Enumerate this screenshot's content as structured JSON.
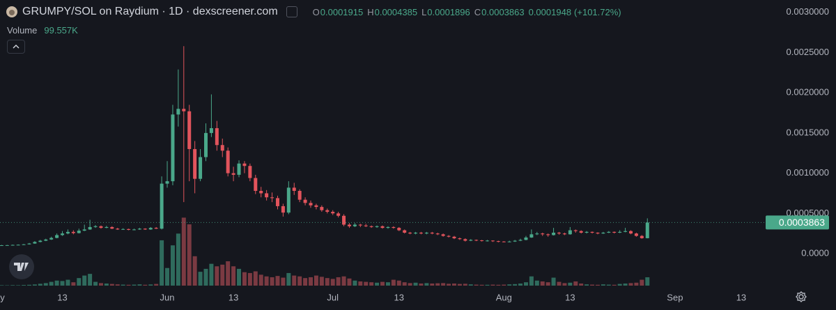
{
  "chart_data": {
    "type": "candlestick",
    "title": "GRUMPY/SOL on Raydium · 1D · dexscreener.com",
    "x": [
      2,
      3,
      4,
      5,
      6,
      7,
      8,
      9,
      10,
      11,
      12,
      13,
      14,
      15,
      16,
      17,
      18,
      19,
      20,
      21,
      22,
      23,
      24,
      25,
      26,
      27,
      28,
      29,
      30,
      31,
      32,
      33,
      34,
      35,
      36,
      37,
      38,
      39,
      40,
      41,
      42,
      43,
      44,
      45,
      46,
      47,
      48,
      49,
      50,
      51,
      52,
      53,
      54,
      55,
      56,
      57,
      58,
      59,
      60,
      61,
      62,
      63,
      64,
      65,
      66,
      67,
      68,
      69,
      70,
      71,
      72,
      73,
      74,
      75,
      76,
      77,
      78,
      79,
      80,
      81,
      82,
      83,
      84,
      85,
      86,
      87,
      88,
      89,
      90,
      91,
      92,
      93,
      94,
      95,
      96,
      97,
      98,
      99,
      100,
      101,
      102,
      103,
      104,
      105,
      106,
      107,
      108,
      109,
      110,
      111,
      112,
      113,
      114,
      115,
      116,
      117,
      118,
      119
    ],
    "open": [
      0.000102,
      0.000104,
      0.000105,
      0.000108,
      0.00011,
      0.000115,
      0.000125,
      0.000145,
      0.00016,
      0.000175,
      0.000195,
      0.00023,
      0.00025,
      0.00027,
      0.000255,
      0.000285,
      0.0003,
      0.00033,
      0.00034,
      0.00032,
      0.00033,
      0.00031,
      0.0003,
      0.000305,
      0.000295,
      0.0003,
      0.00031,
      0.0003,
      0.00032,
      0.00031,
      0.00087,
      0.0009,
      0.00173,
      0.0018,
      0.00177,
      0.0013,
      0.00093,
      0.0012,
      0.0015,
      0.00156,
      0.00135,
      0.00128,
      0.001,
      0.00098,
      0.00112,
      0.00109,
      0.00094,
      0.00078,
      0.00075,
      0.0007,
      0.00069,
      0.00059,
      0.00051,
      0.00082,
      0.00078,
      0.00067,
      0.00063,
      0.0006,
      0.00058,
      0.00054,
      0.00052,
      0.0005,
      0.00047,
      0.00036,
      0.00034,
      0.00036,
      0.00035,
      0.00034,
      0.00033,
      0.00034,
      0.00032,
      0.00033,
      0.00032,
      0.00029,
      0.00026,
      0.00025,
      0.00026,
      0.00025,
      0.00026,
      0.00025,
      0.00024,
      0.00022,
      0.00021,
      0.00019,
      0.00018,
      0.00016,
      0.00017,
      0.000165,
      0.00016,
      0.000162,
      0.000155,
      0.00015,
      0.000145,
      0.00015,
      0.00016,
      0.00017,
      0.0002,
      0.00024,
      0.00025,
      0.00024,
      0.00023,
      0.00026,
      0.00025,
      0.00024,
      0.00029,
      0.00028,
      0.00026,
      0.00027,
      0.00026,
      0.00025,
      0.00026,
      0.00027,
      0.00026,
      0.00027,
      0.00028,
      0.00025,
      0.00022,
      0.0001915
    ],
    "high": [
      0.000108,
      0.000108,
      0.000112,
      0.000114,
      0.00012,
      0.000132,
      0.000155,
      0.00017,
      0.000185,
      0.00021,
      0.00025,
      0.00028,
      0.0003,
      0.00029,
      0.00031,
      0.00036,
      0.00042,
      0.000355,
      0.00035,
      0.000345,
      0.00034,
      0.00032,
      0.000315,
      0.00031,
      0.00031,
      0.00032,
      0.000315,
      0.00033,
      0.00033,
      0.00096,
      0.00115,
      0.00185,
      0.00229,
      0.00258,
      0.00185,
      0.0014,
      0.0013,
      0.00162,
      0.00198,
      0.00165,
      0.00143,
      0.00132,
      0.00108,
      0.00116,
      0.00115,
      0.00112,
      0.00098,
      0.00083,
      0.00079,
      0.00076,
      0.00072,
      0.00062,
      0.0009,
      0.00088,
      0.0008,
      0.0007,
      0.00066,
      0.00062,
      0.0006,
      0.00056,
      0.00054,
      0.00052,
      0.00049,
      0.00038,
      0.00038,
      0.00037,
      0.00037,
      0.00035,
      0.00035,
      0.00035,
      0.00034,
      0.00034,
      0.00033,
      0.0003,
      0.00027,
      0.00027,
      0.00027,
      0.00027,
      0.00027,
      0.00026,
      0.00025,
      0.00023,
      0.00022,
      0.0002,
      0.00019,
      0.00018,
      0.000175,
      0.00017,
      0.00017,
      0.000165,
      0.00016,
      0.000155,
      0.00016,
      0.00017,
      0.000185,
      0.00022,
      0.0003,
      0.00027,
      0.00026,
      0.00025,
      0.00032,
      0.00027,
      0.00026,
      0.00033,
      0.0003,
      0.00029,
      0.00028,
      0.000275,
      0.000265,
      0.00027,
      0.00028,
      0.000275,
      0.00029,
      0.00032,
      0.00029,
      0.00026,
      0.00023,
      0.0004385
    ],
    "low": [
      0.0001,
      0.000102,
      0.000103,
      0.000106,
      0.000108,
      0.000112,
      0.000122,
      0.00014,
      0.000155,
      0.00017,
      0.00019,
      0.00022,
      0.00024,
      0.00024,
      0.00025,
      0.00028,
      0.000295,
      0.00032,
      0.00031,
      0.000315,
      0.000305,
      0.000295,
      0.000295,
      0.00029,
      0.00029,
      0.000295,
      0.000295,
      0.000295,
      0.000305,
      0.0003,
      0.00082,
      0.00085,
      0.00158,
      0.00064,
      0.0009,
      0.00075,
      0.0009,
      0.00115,
      0.00145,
      0.00128,
      0.0012,
      0.00096,
      0.0009,
      0.00095,
      0.001,
      0.0009,
      0.00074,
      0.0007,
      0.00066,
      0.00064,
      0.00055,
      0.00046,
      0.00049,
      0.00073,
      0.00064,
      0.0006,
      0.00057,
      0.00055,
      0.00052,
      0.0005,
      0.00048,
      0.00045,
      0.00034,
      0.00032,
      0.00033,
      0.00033,
      0.00033,
      0.00032,
      0.00032,
      0.00031,
      0.00031,
      0.00031,
      0.00028,
      0.00025,
      0.00024,
      0.00024,
      0.00024,
      0.00024,
      0.00024,
      0.00023,
      0.00021,
      0.0002,
      0.00018,
      0.00017,
      0.00015,
      0.000155,
      0.000155,
      0.00015,
      0.00015,
      0.000145,
      0.00014,
      0.00014,
      0.00014,
      0.000145,
      0.000155,
      0.000165,
      0.000195,
      0.00023,
      0.00022,
      0.00021,
      0.000225,
      0.000235,
      0.00023,
      0.000235,
      0.00026,
      0.00025,
      0.00025,
      0.00025,
      0.00024,
      0.000245,
      0.000255,
      0.00025,
      0.000255,
      0.000265,
      0.00024,
      0.00021,
      0.000185,
      0.0001896
    ],
    "close": [
      0.000104,
      0.000105,
      0.000108,
      0.00011,
      0.000115,
      0.000125,
      0.000145,
      0.00016,
      0.000175,
      0.000195,
      0.00023,
      0.00025,
      0.00027,
      0.000255,
      0.000285,
      0.0003,
      0.00033,
      0.00034,
      0.00032,
      0.00033,
      0.00031,
      0.0003,
      0.000305,
      0.000295,
      0.0003,
      0.00031,
      0.0003,
      0.00032,
      0.00031,
      0.00087,
      0.0009,
      0.00173,
      0.0018,
      0.00177,
      0.0013,
      0.00093,
      0.0012,
      0.0015,
      0.00156,
      0.00135,
      0.00128,
      0.001,
      0.00098,
      0.00112,
      0.00109,
      0.00094,
      0.00078,
      0.00075,
      0.0007,
      0.00069,
      0.00059,
      0.00051,
      0.00082,
      0.00078,
      0.00067,
      0.00063,
      0.0006,
      0.00058,
      0.00054,
      0.00052,
      0.0005,
      0.00047,
      0.00036,
      0.00034,
      0.00036,
      0.00035,
      0.00034,
      0.00033,
      0.00034,
      0.00032,
      0.00033,
      0.00032,
      0.00029,
      0.00026,
      0.00025,
      0.00026,
      0.00025,
      0.00026,
      0.00025,
      0.00024,
      0.00022,
      0.00021,
      0.00019,
      0.00018,
      0.00016,
      0.00017,
      0.000165,
      0.00016,
      0.000162,
      0.000155,
      0.00015,
      0.000145,
      0.00015,
      0.00016,
      0.00017,
      0.0002,
      0.00024,
      0.00025,
      0.00024,
      0.00023,
      0.00026,
      0.00025,
      0.00024,
      0.00029,
      0.00028,
      0.00026,
      0.00027,
      0.00026,
      0.00025,
      0.00026,
      0.00027,
      0.00026,
      0.00027,
      0.00028,
      0.00025,
      0.00022,
      0.0001915,
      0.0003863
    ],
    "volume": {
      "name": "Volume",
      "ylim": [
        0,
        830000
      ],
      "values": [
        5000,
        4000,
        6000,
        5000,
        8000,
        10000,
        14000,
        22000,
        30000,
        45000,
        60000,
        55000,
        70000,
        40000,
        90000,
        120000,
        140000,
        45000,
        30000,
        25000,
        20000,
        15000,
        12000,
        10000,
        12000,
        15000,
        10000,
        14000,
        20000,
        540000,
        210000,
        480000,
        620000,
        810000,
        730000,
        350000,
        165000,
        200000,
        260000,
        230000,
        250000,
        290000,
        230000,
        200000,
        160000,
        150000,
        170000,
        130000,
        110000,
        100000,
        115000,
        95000,
        150000,
        120000,
        110000,
        90000,
        100000,
        120000,
        105000,
        90000,
        80000,
        100000,
        110000,
        85000,
        60000,
        50000,
        45000,
        40000,
        35000,
        45000,
        40000,
        70000,
        60000,
        40000,
        30000,
        35000,
        25000,
        30000,
        25000,
        28000,
        30000,
        22000,
        25000,
        20000,
        22000,
        15000,
        12000,
        10000,
        10000,
        12000,
        10000,
        12000,
        15000,
        18000,
        25000,
        40000,
        110000,
        60000,
        50000,
        40000,
        95000,
        45000,
        30000,
        35000,
        50000,
        25000,
        15000,
        12000,
        10000,
        15000,
        12000,
        10000,
        20000,
        25000,
        30000,
        35000,
        70000,
        99557
      ]
    },
    "readout": {
      "labels": [
        "O",
        "H",
        "L",
        "C"
      ],
      "change": 0.0001948,
      "change_percent": {
        "value": 101.72,
        "label": "(+101.72%)"
      },
      "volume": {
        "value": 99557,
        "label": "99.557K"
      }
    },
    "colors": {
      "up": "#4aa88a",
      "down": "#e2545c",
      "up_volume": "#2f6b5d",
      "down_volume": "#7b3a42"
    },
    "xlim": [
      1.7,
      140.3
    ],
    "xticks": [
      {
        "value": 1,
        "label": "May"
      },
      13,
      {
        "value": 32,
        "label": "Jun"
      },
      {
        "value": 44,
        "label": "13"
      },
      {
        "value": 62,
        "label": "Jul"
      },
      {
        "value": 74,
        "label": "13"
      },
      {
        "value": 93,
        "label": "Aug"
      },
      {
        "value": 105,
        "label": "13"
      },
      {
        "value": 124,
        "label": "Sep"
      },
      {
        "value": 136,
        "label": "13"
      }
    ],
    "ylim": [
      -0.000511,
      0.003154
    ],
    "yticks": [
      {
        "value": 0.003,
        "label": "0.0030000"
      },
      {
        "value": 0.0025,
        "label": "0.0025000"
      },
      {
        "value": 0.002,
        "label": "0.0020000"
      },
      {
        "value": 0.0015,
        "label": "0.0015000"
      },
      {
        "value": 0.001,
        "label": "0.0010000"
      },
      {
        "value": 0.0005,
        "label": "0.0005000"
      },
      {
        "value": 0,
        "label": "0.0000"
      }
    ]
  }
}
